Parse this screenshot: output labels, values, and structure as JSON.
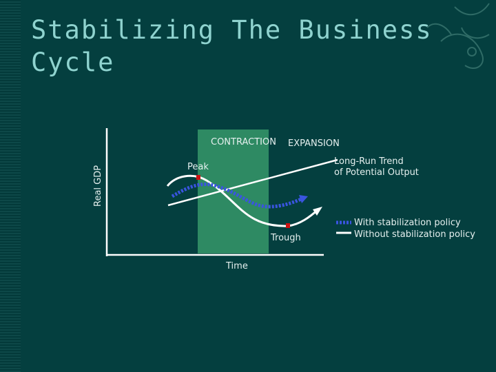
{
  "slide": {
    "title_line1": "Stabilizing The Business",
    "title_line2": "Cycle"
  },
  "diagram": {
    "y_axis_label": "Real GDP",
    "x_axis_label": "Time",
    "phase_contraction": "CONTRACTION",
    "phase_expansion": "EXPANSION",
    "peak_label": "Peak",
    "trough_label": "Trough",
    "trend_label_line1": "Long-Run Trend",
    "trend_label_line2": "of Potential Output",
    "legend": {
      "with_policy": "With stabilization policy",
      "without_policy": "Without stabilization policy"
    },
    "colors": {
      "background": "#043f3f",
      "contraction_band": "#2e8a63",
      "with_policy_line": "#3a55e0",
      "without_policy_line": "#ffffff",
      "point_marker": "#cc1111"
    }
  }
}
